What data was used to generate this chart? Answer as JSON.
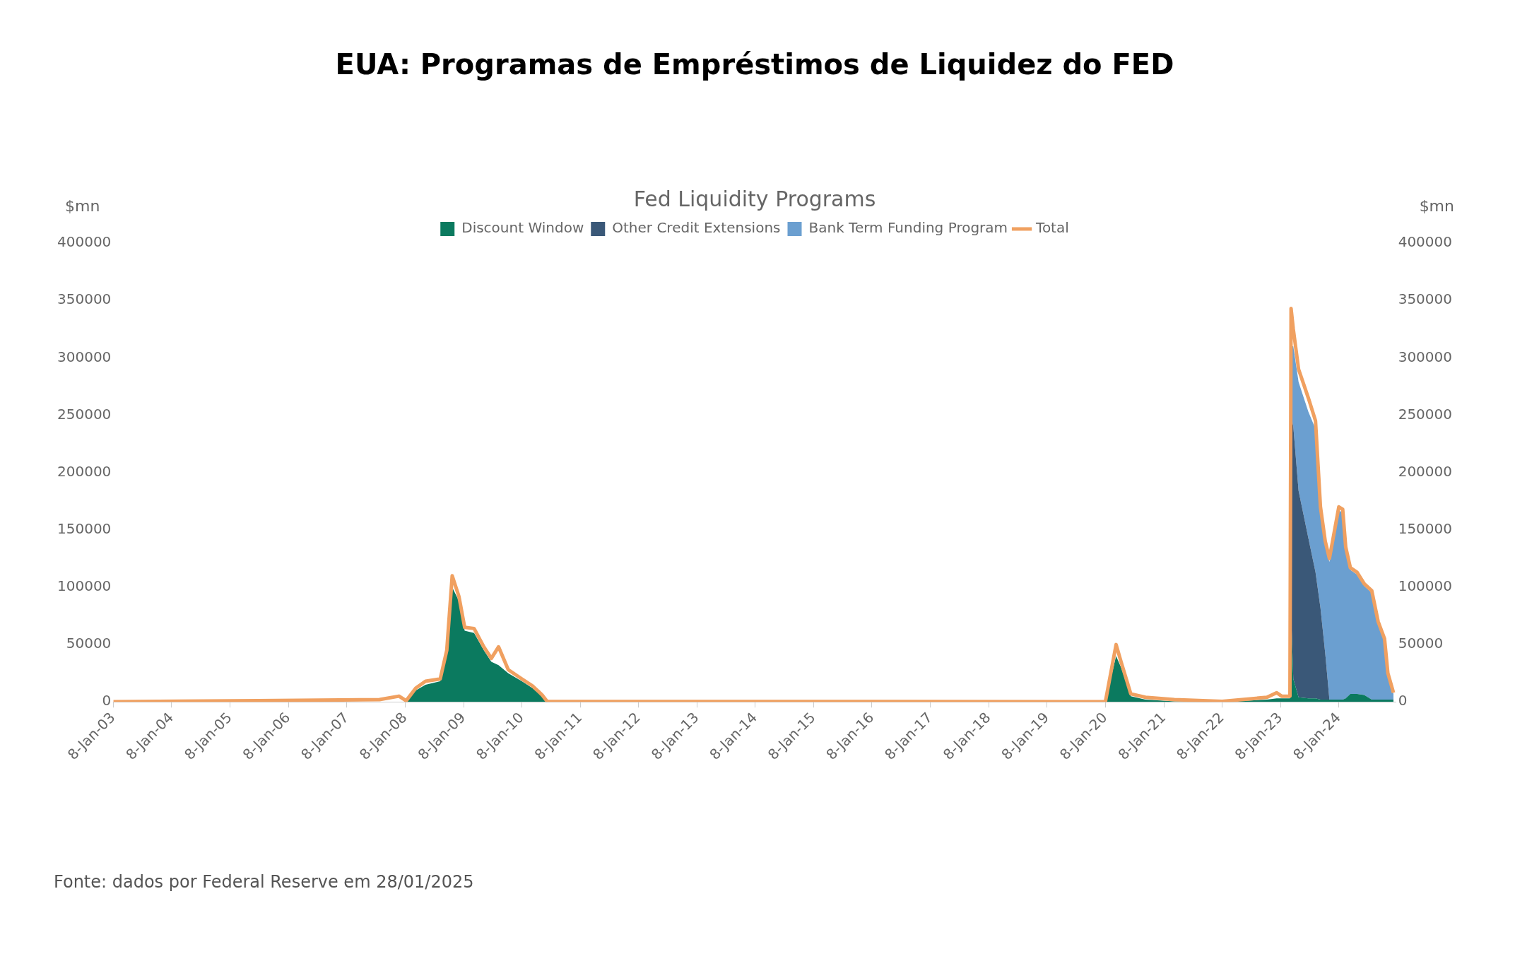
{
  "chart_data": {
    "type": "area",
    "title": "EUA: Programas de Empréstimos de Liquidez do FED",
    "subtitle": "Fed Liquidity Programs",
    "ylabel": "$mn",
    "y2label": "$mn",
    "stacked": true,
    "legend": "top",
    "x": [
      "2003-01-08",
      "2005-07-01",
      "2007-08-01",
      "2007-12-01",
      "2008-01-15",
      "2008-03-15",
      "2008-05-15",
      "2008-08-15",
      "2008-09-25",
      "2008-10-29",
      "2008-12-10",
      "2009-01-15",
      "2009-03-15",
      "2009-05-15",
      "2009-07-01",
      "2009-08-15",
      "2009-10-15",
      "2010-01-08",
      "2010-03-15",
      "2010-05-15",
      "2010-06-15",
      "2020-01-08",
      "2020-03-15",
      "2020-04-15",
      "2020-06-15",
      "2020-09-15",
      "2021-03-15",
      "2022-01-08",
      "2022-10-15",
      "2022-12-15",
      "2023-01-15",
      "2023-03-08",
      "2023-03-15",
      "2023-03-29",
      "2023-05-01",
      "2023-07-01",
      "2023-08-15",
      "2023-09-15",
      "2023-10-15",
      "2023-11-10",
      "2024-01-08",
      "2024-02-01",
      "2024-02-20",
      "2024-03-20",
      "2024-05-01",
      "2024-06-15",
      "2024-08-01",
      "2024-09-10",
      "2024-10-20",
      "2024-11-10",
      "2024-12-15"
    ],
    "series": [
      {
        "name": "Discount Window",
        "color": "#0b7a5f",
        "values": [
          0,
          0,
          0,
          0,
          0,
          10000,
          15000,
          18000,
          40000,
          100000,
          88000,
          62000,
          60000,
          45000,
          35000,
          32000,
          25000,
          18000,
          12000,
          5000,
          0,
          0,
          40000,
          30000,
          5000,
          2000,
          500,
          0,
          2000,
          3000,
          3000,
          3000,
          80000,
          20000,
          4000,
          3000,
          3000,
          2000,
          2000,
          2000,
          2000,
          2000,
          3000,
          7000,
          7000,
          6000,
          2000,
          2000,
          2000,
          2000,
          2000
        ]
      },
      {
        "name": "Other Credit Extensions",
        "color": "#3a5878",
        "values": [
          0,
          0,
          0,
          0,
          0,
          0,
          0,
          0,
          0,
          0,
          0,
          0,
          0,
          0,
          0,
          0,
          0,
          0,
          0,
          0,
          0,
          0,
          0,
          0,
          0,
          0,
          0,
          0,
          0,
          0,
          0,
          0,
          170000,
          220000,
          180000,
          140000,
          110000,
          80000,
          40000,
          0,
          0,
          0,
          0,
          0,
          0,
          0,
          0,
          0,
          0,
          0,
          0
        ]
      },
      {
        "name": "Bank Term Funding Program",
        "color": "#6b9fd0",
        "values": [
          0,
          0,
          0,
          0,
          0,
          0,
          0,
          0,
          0,
          0,
          0,
          0,
          0,
          0,
          0,
          0,
          0,
          0,
          0,
          0,
          0,
          0,
          0,
          0,
          0,
          0,
          0,
          0,
          0,
          0,
          0,
          0,
          60000,
          70000,
          95000,
          110000,
          125000,
          85000,
          95000,
          120000,
          165000,
          163000,
          130000,
          108000,
          104000,
          95000,
          93000,
          66000,
          52000,
          22000,
          5000
        ]
      },
      {
        "name": "Total",
        "type": "line",
        "color": "#f0a060",
        "values": [
          200,
          1000,
          2000,
          5000,
          1000,
          12000,
          18000,
          20000,
          45000,
          110000,
          92000,
          65000,
          64000,
          48000,
          38000,
          48000,
          28000,
          20000,
          14000,
          6000,
          500,
          100,
          50000,
          35000,
          7000,
          4000,
          2000,
          500,
          4000,
          8000,
          5000,
          5000,
          343000,
          325000,
          290000,
          265000,
          245000,
          170000,
          140000,
          125000,
          170000,
          168000,
          135000,
          117000,
          113000,
          103000,
          97000,
          70000,
          55000,
          25000,
          8000
        ]
      }
    ],
    "xlim": [
      "2003-01-08",
      "2024-12-31"
    ],
    "xticks": [
      {
        "value": "2003-01-08",
        "label": "8-Jan-03"
      },
      {
        "value": "2004-01-08",
        "label": "8-Jan-04"
      },
      {
        "value": "2005-01-08",
        "label": "8-Jan-05"
      },
      {
        "value": "2006-01-08",
        "label": "8-Jan-06"
      },
      {
        "value": "2007-01-08",
        "label": "8-Jan-07"
      },
      {
        "value": "2008-01-08",
        "label": "8-Jan-08"
      },
      {
        "value": "2009-01-08",
        "label": "8-Jan-09"
      },
      {
        "value": "2010-01-08",
        "label": "8-Jan-10"
      },
      {
        "value": "2011-01-08",
        "label": "8-Jan-11"
      },
      {
        "value": "2012-01-08",
        "label": "8-Jan-12"
      },
      {
        "value": "2013-01-08",
        "label": "8-Jan-13"
      },
      {
        "value": "2014-01-08",
        "label": "8-Jan-14"
      },
      {
        "value": "2015-01-08",
        "label": "8-Jan-15"
      },
      {
        "value": "2016-01-08",
        "label": "8-Jan-16"
      },
      {
        "value": "2017-01-08",
        "label": "8-Jan-17"
      },
      {
        "value": "2018-01-08",
        "label": "8-Jan-18"
      },
      {
        "value": "2019-01-08",
        "label": "8-Jan-19"
      },
      {
        "value": "2020-01-08",
        "label": "8-Jan-20"
      },
      {
        "value": "2021-01-08",
        "label": "8-Jan-21"
      },
      {
        "value": "2022-01-08",
        "label": "8-Jan-22"
      },
      {
        "value": "2023-01-08",
        "label": "8-Jan-23"
      },
      {
        "value": "2024-01-08",
        "label": "8-Jan-24"
      }
    ],
    "ylim": [
      0,
      400000
    ],
    "yticks": [
      0,
      50000,
      100000,
      150000,
      200000,
      250000,
      300000,
      350000,
      400000
    ],
    "y2lim": [
      0,
      400000
    ],
    "y2ticks": [
      0,
      50000,
      100000,
      150000,
      200000,
      250000,
      300000,
      350000,
      400000
    ],
    "annotations": [
      "Fonte: dados por Federal Reserve em 28/01/2025"
    ]
  }
}
